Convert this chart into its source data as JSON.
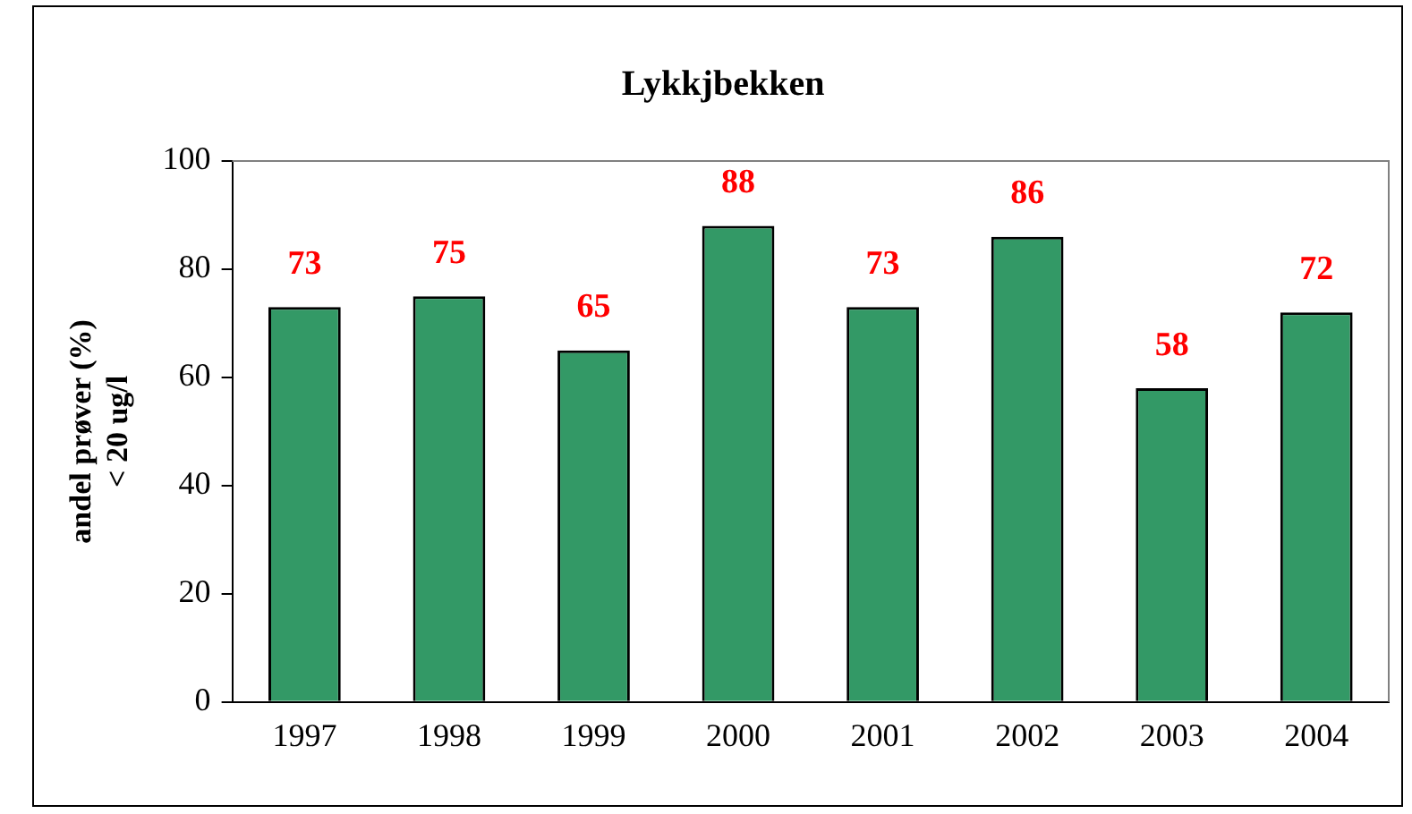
{
  "chart_data": {
    "type": "bar",
    "title": "Lykkjbekken",
    "ylabel": "andel prøver (%)\n< 20 ug/l",
    "categories": [
      "1997",
      "1998",
      "1999",
      "2000",
      "2001",
      "2002",
      "2003",
      "2004"
    ],
    "values": [
      73,
      75,
      65,
      88,
      73,
      86,
      58,
      72
    ],
    "color": "#339966",
    "ylim": [
      0,
      100
    ],
    "yticks": [
      0,
      20,
      40,
      60,
      80,
      100
    ],
    "grid": false,
    "legend": false,
    "data_labels": true
  }
}
